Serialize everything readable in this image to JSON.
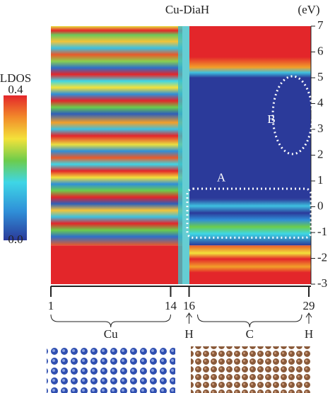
{
  "chart_data": {
    "type": "heatmap",
    "title": "Cu-DiaH",
    "y_unit": "(eV)",
    "ylim": [
      -3,
      7
    ],
    "yticks": [
      -3,
      -2,
      -1,
      0,
      1,
      2,
      3,
      4,
      5,
      6,
      7
    ],
    "xlim": [
      1,
      29
    ],
    "xticks": [
      1,
      14,
      16,
      29
    ],
    "colorbar": {
      "label": "LDOS",
      "clim": [
        0,
        0.4
      ],
      "ticks": [
        0.4,
        {
          "value": 0,
          "label": "0.0"
        }
      ]
    },
    "groups": [
      {
        "label": "Cu"
      },
      {
        "label": "H"
      },
      {
        "label": "C"
      },
      {
        "label": "H"
      }
    ],
    "annotations": [
      "A",
      "B"
    ]
  }
}
